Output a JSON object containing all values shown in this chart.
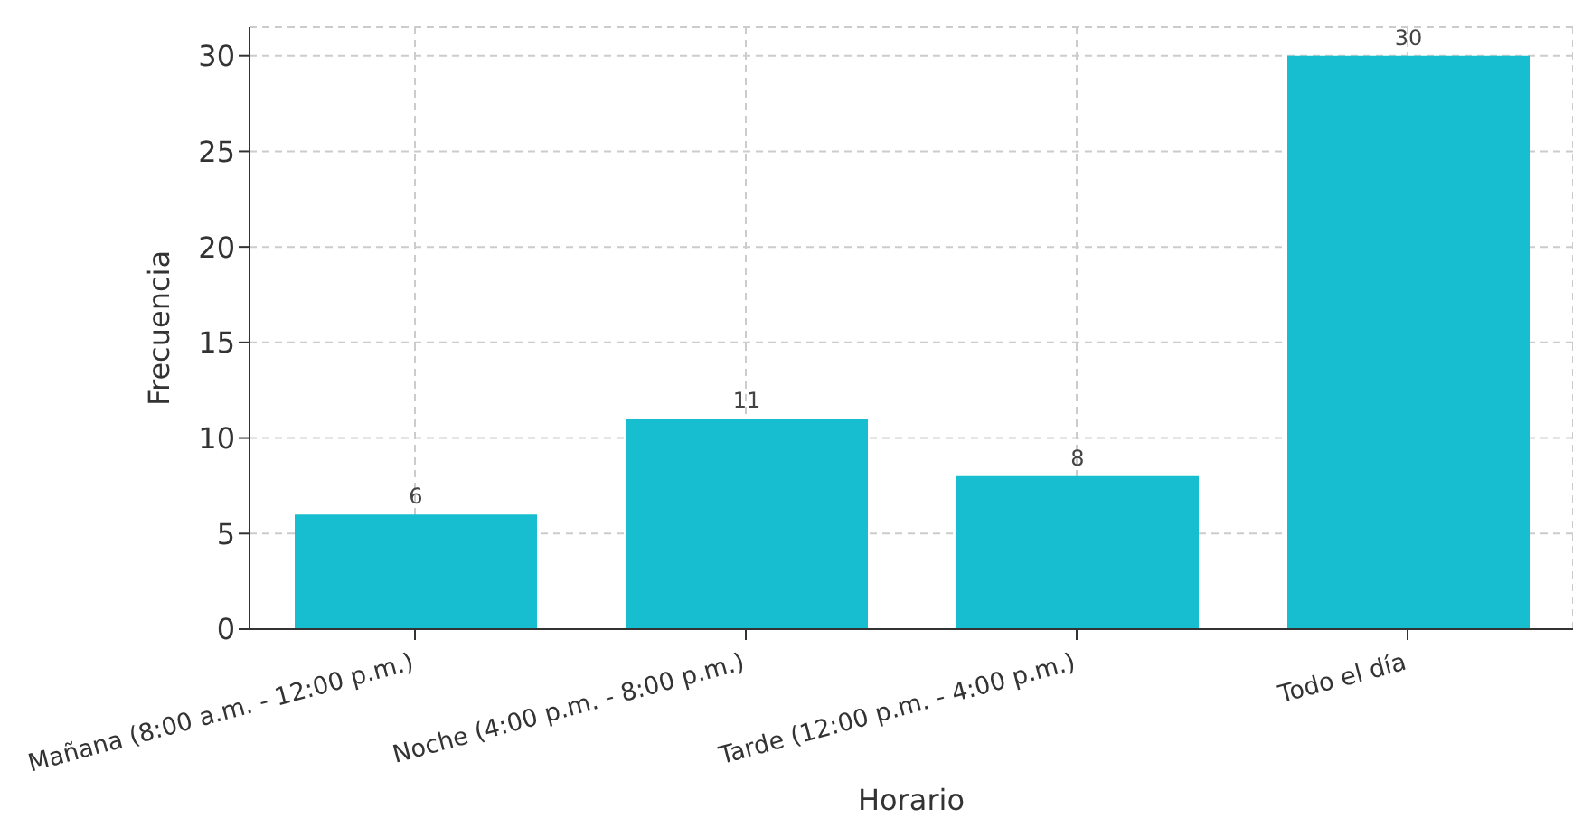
{
  "chart_data": {
    "type": "bar",
    "xlabel": "Horario",
    "ylabel": "Frecuencia",
    "categories": [
      "Mañana (8:00 a.m. - 12:00 p.m.)",
      "Noche (4:00 p.m. - 8:00 p.m.)",
      "Tarde (12:00 p.m. - 4:00 p.m.)",
      "Todo el día"
    ],
    "values": [
      6,
      11,
      8,
      30
    ],
    "color": "#17becf",
    "ylim": [
      0,
      31.5
    ],
    "yticks": [
      0,
      5,
      10,
      15,
      20,
      25,
      30
    ],
    "grid": true,
    "data_labels": true
  }
}
